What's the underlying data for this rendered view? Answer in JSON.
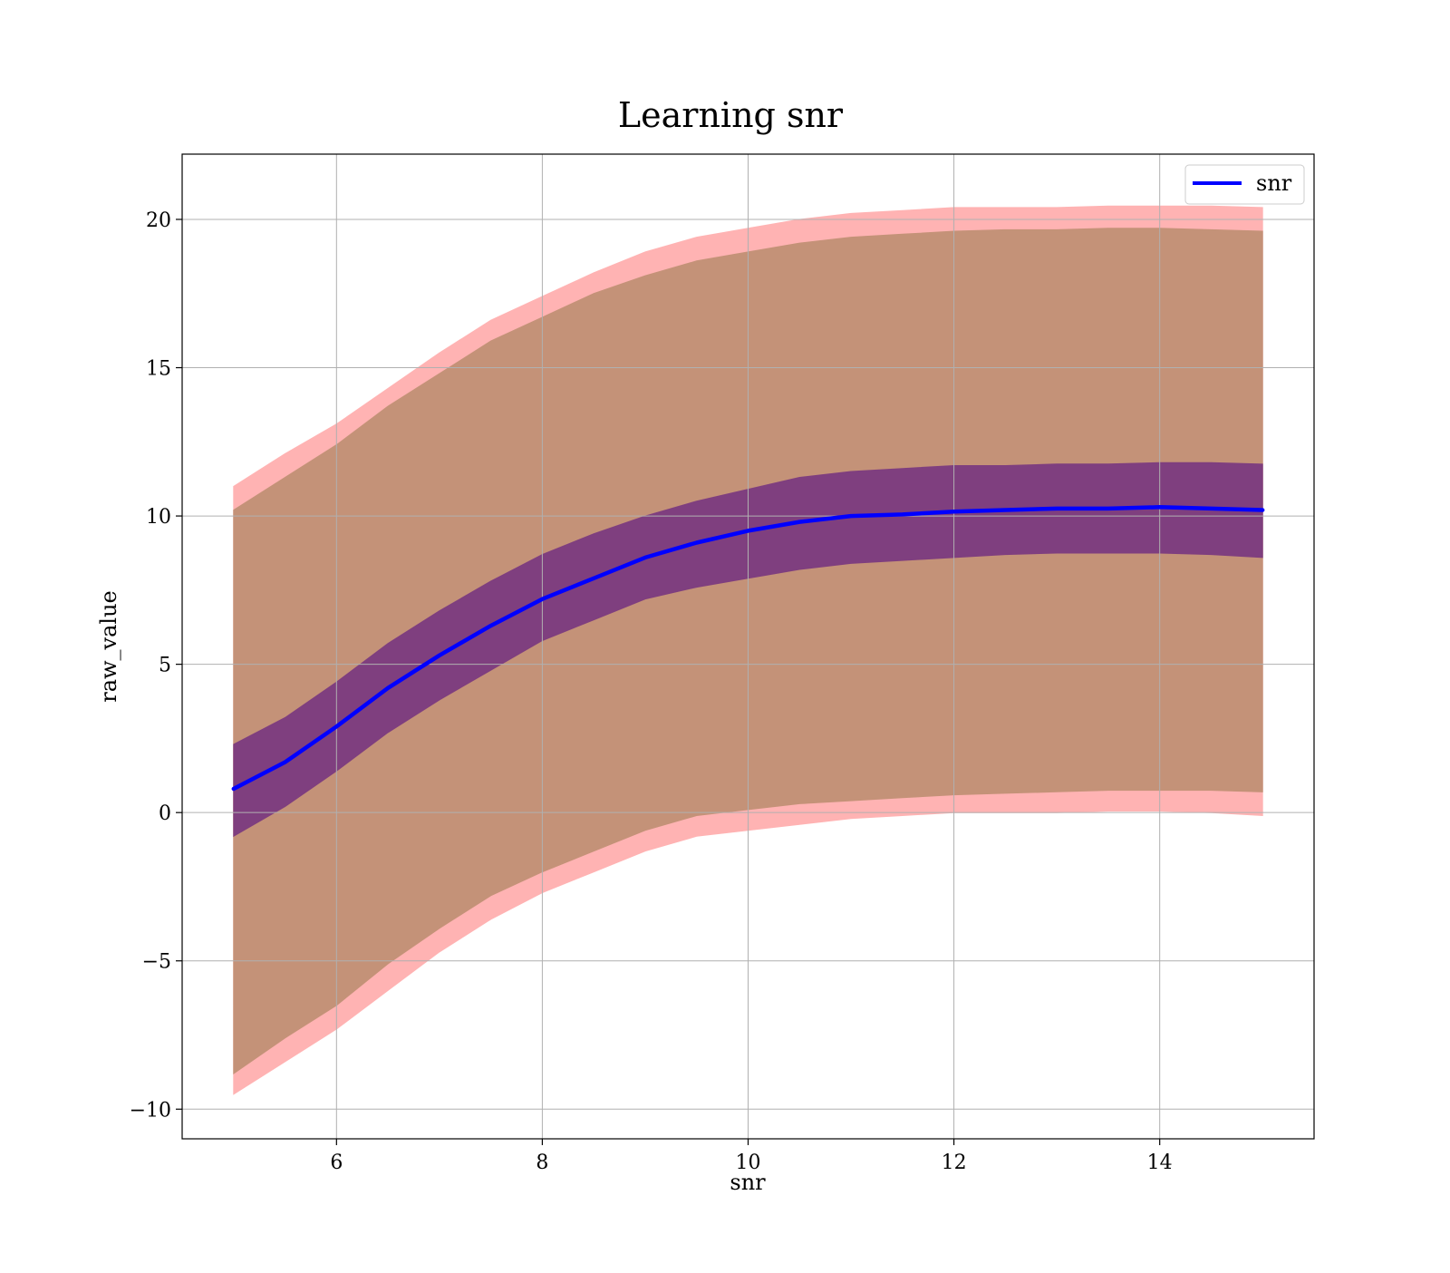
{
  "chart_data": {
    "type": "line",
    "title": "Learning snr",
    "xlabel": "snr",
    "ylabel": "raw_value",
    "xlim": [
      4.5,
      15.5
    ],
    "ylim": [
      -11.0,
      22.2
    ],
    "xticks": [
      6,
      8,
      10,
      12,
      14
    ],
    "xtick_labels": [
      "6",
      "8",
      "10",
      "12",
      "14"
    ],
    "yticks": [
      -10,
      -5,
      0,
      5,
      10,
      15,
      20
    ],
    "ytick_labels": [
      "−10",
      "−5",
      "0",
      "5",
      "10",
      "15",
      "20"
    ],
    "grid": true,
    "legend": {
      "position": "top-right",
      "entries": [
        "snr"
      ]
    },
    "x": [
      5.0,
      5.5,
      6.0,
      6.5,
      7.0,
      7.5,
      8.0,
      8.5,
      9.0,
      9.5,
      10.0,
      10.5,
      11.0,
      11.5,
      12.0,
      12.5,
      13.0,
      13.5,
      14.0,
      14.5,
      15.0
    ],
    "series": [
      {
        "name": "snr",
        "role": "mean",
        "color": "#0000ff",
        "values": [
          0.8,
          1.7,
          2.9,
          4.2,
          5.3,
          6.3,
          7.2,
          7.9,
          8.6,
          9.1,
          9.5,
          9.8,
          10.0,
          10.05,
          10.15,
          10.2,
          10.25,
          10.25,
          10.3,
          10.25,
          10.2
        ]
      },
      {
        "role": "inner_band",
        "color": "#7f3f7f",
        "lower": [
          -0.8,
          0.2,
          1.4,
          2.7,
          3.8,
          4.8,
          5.8,
          6.5,
          7.2,
          7.6,
          7.9,
          8.2,
          8.4,
          8.5,
          8.6,
          8.7,
          8.75,
          8.75,
          8.75,
          8.7,
          8.6
        ],
        "upper": [
          2.3,
          3.2,
          4.4,
          5.7,
          6.8,
          7.8,
          8.7,
          9.4,
          10.0,
          10.5,
          10.9,
          11.3,
          11.5,
          11.6,
          11.7,
          11.7,
          11.75,
          11.75,
          11.8,
          11.8,
          11.75
        ]
      },
      {
        "role": "outer_band",
        "color": "#c49278",
        "lower": [
          -8.8,
          -7.6,
          -6.5,
          -5.1,
          -3.9,
          -2.8,
          -2.0,
          -1.3,
          -0.6,
          -0.1,
          0.1,
          0.3,
          0.4,
          0.5,
          0.6,
          0.65,
          0.7,
          0.75,
          0.75,
          0.75,
          0.7
        ],
        "upper": [
          10.2,
          11.3,
          12.4,
          13.7,
          14.8,
          15.9,
          16.7,
          17.5,
          18.1,
          18.6,
          18.9,
          19.2,
          19.4,
          19.5,
          19.6,
          19.65,
          19.65,
          19.7,
          19.7,
          19.65,
          19.6
        ]
      },
      {
        "role": "outermost_band",
        "color": "#ffb3b3",
        "lower": [
          -9.5,
          -8.4,
          -7.3,
          -6.0,
          -4.7,
          -3.6,
          -2.7,
          -2.0,
          -1.3,
          -0.8,
          -0.6,
          -0.4,
          -0.2,
          -0.1,
          0.0,
          0.0,
          0.0,
          0.05,
          0.05,
          0.0,
          -0.1
        ],
        "upper": [
          11.0,
          12.1,
          13.1,
          14.3,
          15.5,
          16.6,
          17.4,
          18.2,
          18.9,
          19.4,
          19.7,
          20.0,
          20.2,
          20.3,
          20.4,
          20.4,
          20.4,
          20.45,
          20.45,
          20.45,
          20.4
        ]
      }
    ]
  }
}
